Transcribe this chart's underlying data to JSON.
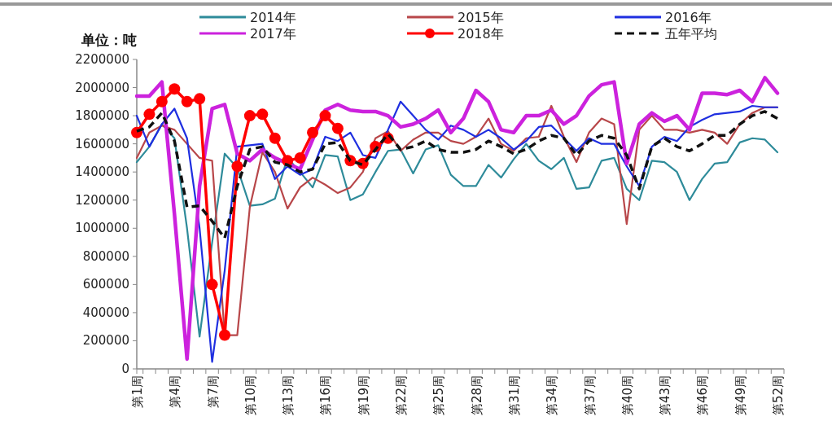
{
  "chart_data": {
    "type": "line",
    "ylabel": "单位：吨",
    "categories": [
      "第1周",
      null,
      null,
      "第4周",
      null,
      null,
      "第7周",
      null,
      null,
      "第10周",
      null,
      null,
      "第13周",
      null,
      null,
      "第16周",
      null,
      null,
      "第19周",
      null,
      null,
      "第22周",
      null,
      null,
      "第25周",
      null,
      null,
      "第28周",
      null,
      null,
      "第31周",
      null,
      null,
      "第34周",
      null,
      null,
      "第37周",
      null,
      null,
      "第40周",
      null,
      null,
      "第43周",
      null,
      null,
      "第46周",
      null,
      null,
      "第49周",
      null,
      null,
      "第52周"
    ],
    "ylim": [
      0,
      2200000
    ],
    "yticks": [
      0,
      200000,
      400000,
      600000,
      800000,
      1000000,
      1200000,
      1400000,
      1600000,
      1800000,
      2000000,
      2200000
    ],
    "grid": false,
    "legend": "top",
    "series": [
      {
        "name": "2014年",
        "color": "#2e8b9a",
        "values": [
          1470000,
          1580000,
          1740000,
          1640000,
          1000000,
          230000,
          900000,
          1530000,
          1430000,
          1160000,
          1170000,
          1210000,
          1500000,
          1400000,
          1290000,
          1520000,
          1510000,
          1200000,
          1240000,
          1400000,
          1550000,
          1560000,
          1390000,
          1560000,
          1590000,
          1380000,
          1300000,
          1300000,
          1450000,
          1360000,
          1490000,
          1600000,
          1480000,
          1420000,
          1500000,
          1280000,
          1290000,
          1480000,
          1500000,
          1280000,
          1200000,
          1480000,
          1470000,
          1400000,
          1200000,
          1350000,
          1460000,
          1470000,
          1610000,
          1640000,
          1630000,
          1540000
        ]
      },
      {
        "name": "2015年",
        "color": "#b8474a",
        "values": [
          1500000,
          1680000,
          1730000,
          1700000,
          1600000,
          1500000,
          1480000,
          240000,
          240000,
          1150000,
          1540000,
          1400000,
          1140000,
          1290000,
          1360000,
          1310000,
          1250000,
          1290000,
          1400000,
          1640000,
          1690000,
          1550000,
          1630000,
          1680000,
          1680000,
          1620000,
          1600000,
          1650000,
          1780000,
          1600000,
          1550000,
          1640000,
          1650000,
          1870000,
          1650000,
          1470000,
          1680000,
          1780000,
          1740000,
          1030000,
          1700000,
          1800000,
          1700000,
          1700000,
          1680000,
          1700000,
          1680000,
          1600000,
          1740000,
          1820000,
          1860000,
          1860000
        ]
      },
      {
        "name": "2016年",
        "color": "#1f2fe0",
        "values": [
          1800000,
          1580000,
          1740000,
          1850000,
          1640000,
          1000000,
          50000,
          700000,
          1580000,
          1590000,
          1600000,
          1350000,
          1440000,
          1380000,
          1420000,
          1650000,
          1620000,
          1680000,
          1520000,
          1500000,
          1700000,
          1900000,
          1800000,
          1700000,
          1630000,
          1730000,
          1700000,
          1650000,
          1700000,
          1640000,
          1560000,
          1620000,
          1720000,
          1730000,
          1640000,
          1550000,
          1640000,
          1600000,
          1600000,
          1440000,
          1300000,
          1580000,
          1650000,
          1620000,
          1720000,
          1770000,
          1810000,
          1820000,
          1830000,
          1870000,
          1860000,
          1860000
        ]
      },
      {
        "name": "2017年",
        "color": "#cc22dd",
        "values": [
          1940000,
          1940000,
          2040000,
          1100000,
          70000,
          1300000,
          1850000,
          1880000,
          1530000,
          1480000,
          1560000,
          1500000,
          1460000,
          1420000,
          1630000,
          1840000,
          1880000,
          1840000,
          1830000,
          1830000,
          1800000,
          1720000,
          1740000,
          1780000,
          1840000,
          1680000,
          1780000,
          1980000,
          1900000,
          1700000,
          1680000,
          1800000,
          1800000,
          1840000,
          1740000,
          1800000,
          1940000,
          2020000,
          2040000,
          1460000,
          1740000,
          1820000,
          1760000,
          1800000,
          1700000,
          1960000,
          1960000,
          1950000,
          1980000,
          1900000,
          2070000,
          1960000
        ]
      },
      {
        "name": "2018年",
        "color": "#ff0000",
        "marker": "circle",
        "values": [
          1680000,
          1810000,
          1900000,
          1990000,
          1900000,
          1920000,
          600000,
          240000,
          1440000,
          1800000,
          1810000,
          1640000,
          1480000,
          1500000,
          1680000,
          1800000,
          1710000,
          1480000,
          1460000,
          1580000,
          1640000,
          null,
          null,
          null,
          null,
          null,
          null,
          null,
          null,
          null,
          null,
          null,
          null,
          null,
          null,
          null,
          null,
          null,
          null,
          null,
          null,
          null,
          null,
          null,
          null,
          null,
          null,
          null,
          null,
          null,
          null,
          null
        ]
      },
      {
        "name": "五年平均",
        "color": "#111111",
        "line_style": "dashed",
        "values": [
          1690000,
          1720000,
          1820000,
          1620000,
          1150000,
          1160000,
          1050000,
          930000,
          1300000,
          1560000,
          1580000,
          1470000,
          1450000,
          1400000,
          1420000,
          1600000,
          1610000,
          1480000,
          1450000,
          1560000,
          1670000,
          1560000,
          1580000,
          1620000,
          1560000,
          1540000,
          1540000,
          1560000,
          1620000,
          1580000,
          1530000,
          1560000,
          1620000,
          1660000,
          1640000,
          1520000,
          1620000,
          1660000,
          1640000,
          1520000,
          1280000,
          1580000,
          1640000,
          1580000,
          1550000,
          1600000,
          1660000,
          1660000,
          1740000,
          1800000,
          1830000,
          1780000
        ]
      }
    ]
  }
}
